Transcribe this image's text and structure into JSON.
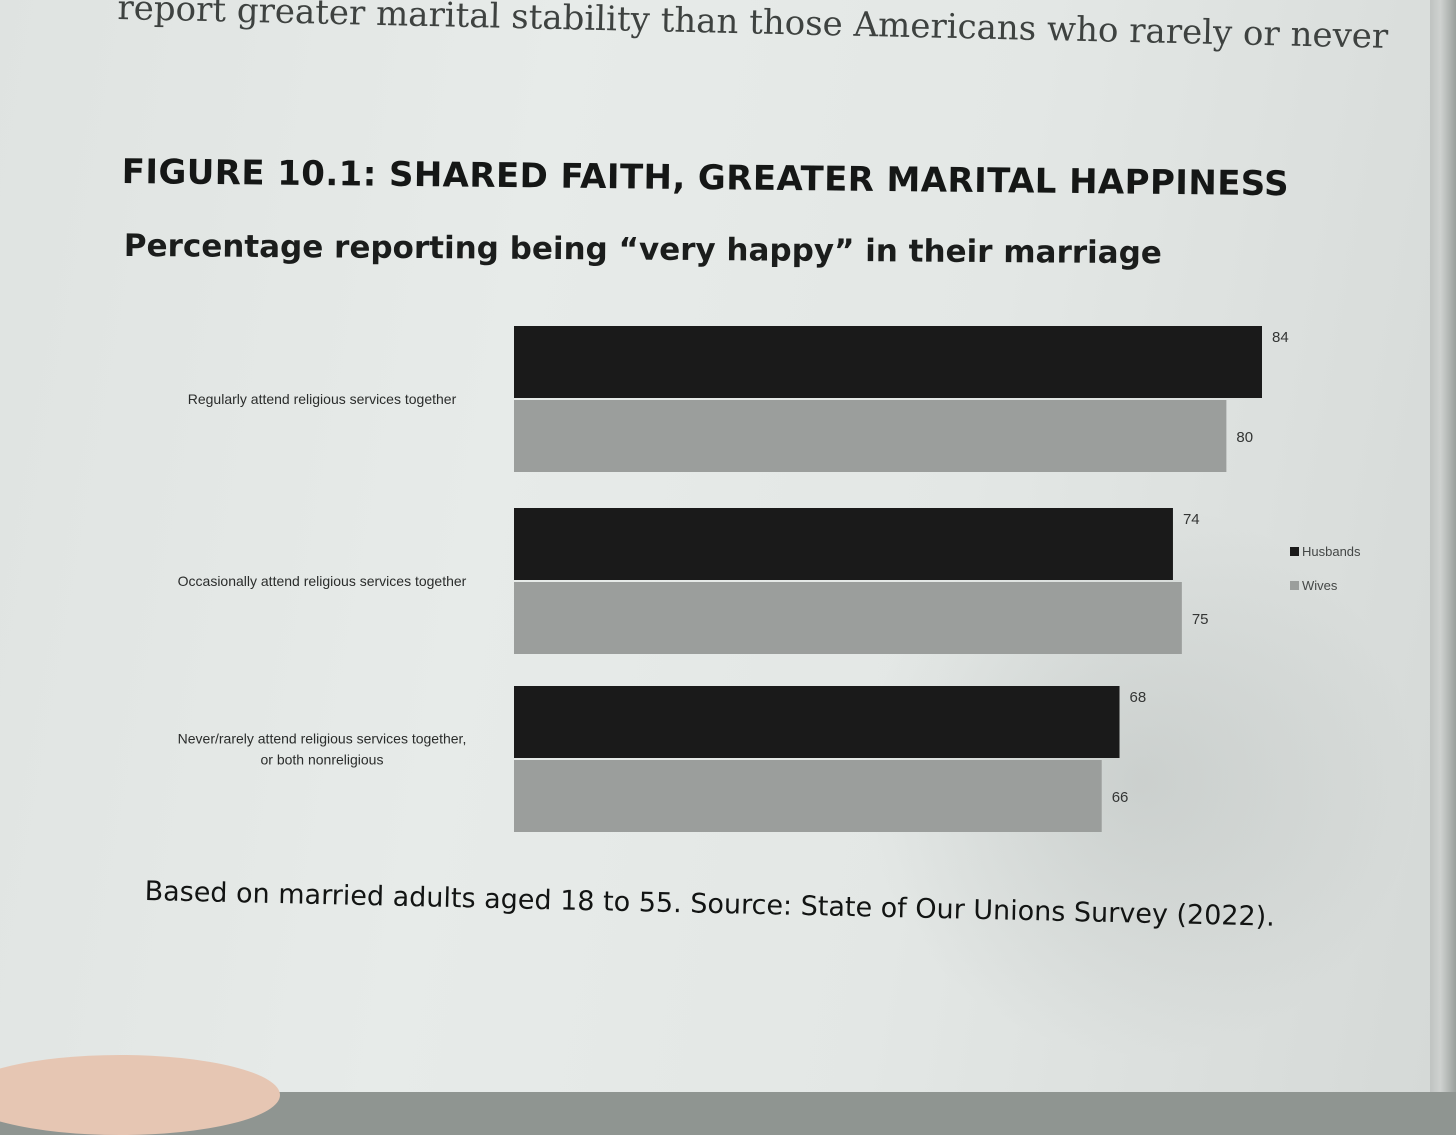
{
  "page": {
    "running_text": "report greater marital stability than those Americans who rarely or never"
  },
  "figure": {
    "title": "FIGURE 10.1: SHARED FAITH, GREATER MARITAL HAPPINESS",
    "subtitle": "Percentage reporting being “very happy” in their marriage",
    "note": "Based on married adults aged 18 to 55. Source: State of Our Unions Survey (2022)."
  },
  "chart_data": {
    "type": "bar",
    "orientation": "horizontal",
    "categories": [
      [
        "Regularly attend religious services together"
      ],
      [
        "Occasionally attend religious services together"
      ],
      [
        "Never/rarely attend religious services together,",
        "or both nonreligious"
      ]
    ],
    "series": [
      {
        "name": "Husbands",
        "values": [
          84,
          74,
          68
        ],
        "color": "#1a1a1a"
      },
      {
        "name": "Wives",
        "values": [
          80,
          75,
          66
        ],
        "color": "#9b9e9c"
      }
    ],
    "xlim": [
      0,
      84
    ],
    "data_labels": true,
    "grid": false,
    "legend": "right"
  }
}
